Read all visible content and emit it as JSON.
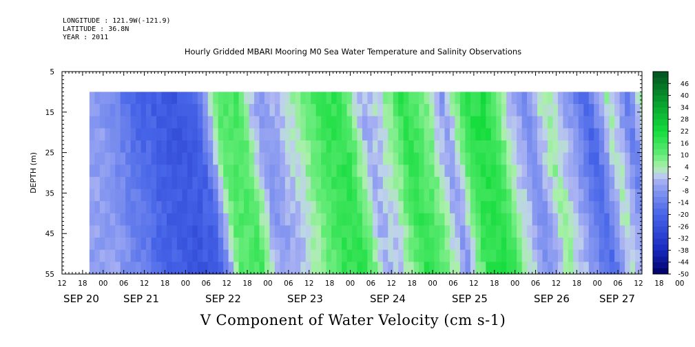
{
  "header": {
    "longitude": "LONGITUDE : 121.9W(-121.9)",
    "latitude": "LATITUDE : 36.8N",
    "year": "YEAR : 2011"
  },
  "chart_data": {
    "type": "heatmap",
    "title": "Hourly Gridded MBARI Mooring M0 Sea Water Temperature and Salinity Observations",
    "xlabel": "V Component of Water Velocity (cm s-1)",
    "ylabel": "DEPTH (m)",
    "ylim": [
      55,
      5
    ],
    "y_ticks": [
      5,
      15,
      25,
      35,
      45,
      55
    ],
    "x_hour_ticks": [
      "12",
      "18",
      "00",
      "06",
      "12",
      "18",
      "00",
      "06",
      "12",
      "18",
      "00",
      "06",
      "12",
      "18",
      "00",
      "06",
      "12",
      "18",
      "00",
      "06",
      "12",
      "18",
      "00",
      "06",
      "12",
      "18",
      "00",
      "06",
      "12",
      "18",
      "00",
      "06",
      "12"
    ],
    "x_date_ticks": [
      "SEP 20",
      "SEP 21",
      "SEP 22",
      "SEP 23",
      "SEP 24",
      "SEP 25",
      "SEP 26",
      "SEP 27"
    ],
    "time_range": [
      "2011-09-20 12:00",
      "2011-09-27 13:00"
    ],
    "data_time_range": [
      "2011-09-20 20:00",
      "2011-09-27 13:00"
    ],
    "data_depth_range": [
      10,
      55
    ],
    "colorbar": {
      "labels": [
        "46",
        "40",
        "34",
        "28",
        "22",
        "16",
        "10",
        "4",
        "-2",
        "-8",
        "-14",
        "-20",
        "-26",
        "-32",
        "-38",
        "-44",
        "-50"
      ],
      "range": [
        -50,
        52
      ],
      "step": 3,
      "colors": {
        "deep_negative": "#00006a",
        "mid_negative": "#5a78e8",
        "light_negative": "#a8b0f0",
        "light_positive": "#a8f0a8",
        "mid_positive": "#1ee83a",
        "deep_positive": "#005a1e"
      }
    },
    "velocity_profile_by_time": {
      "time_hours_from_start": [
        8,
        14,
        20,
        26,
        32,
        38,
        44,
        50,
        56,
        62,
        68,
        74,
        80,
        86,
        92,
        98,
        104,
        110,
        116,
        122,
        128,
        134,
        140,
        146,
        152,
        158,
        164,
        170
      ],
      "v_surface_to_bottom_mean": [
        -6,
        -12,
        -18,
        -22,
        -24,
        -20,
        12,
        14,
        -8,
        -2,
        6,
        16,
        18,
        -4,
        2,
        18,
        10,
        -8,
        18,
        20,
        2,
        -10,
        6,
        -6,
        -20,
        4,
        -14,
        14
      ]
    }
  }
}
